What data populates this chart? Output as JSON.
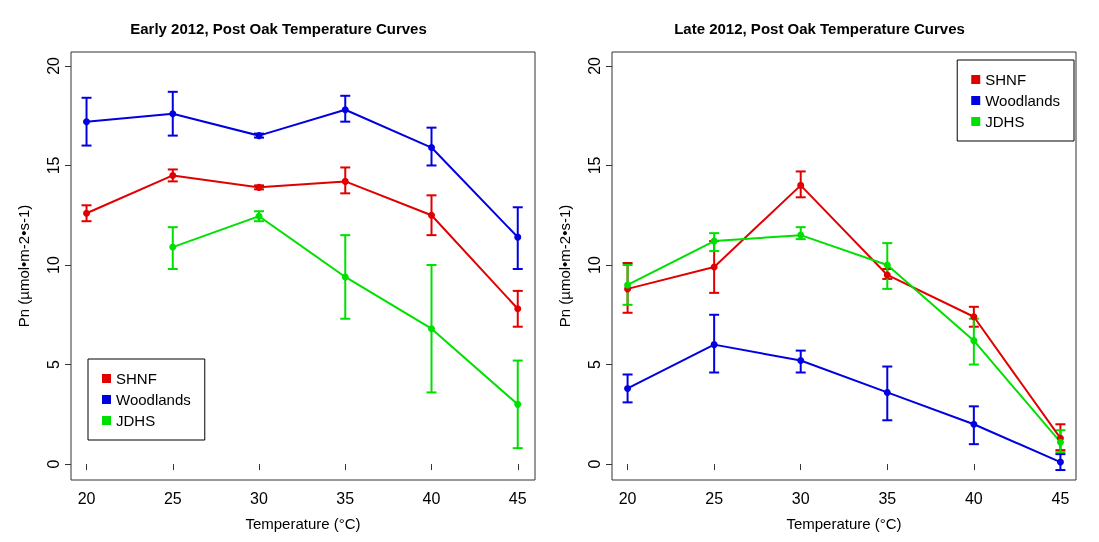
{
  "chart_data": [
    {
      "type": "line",
      "title": "Early 2012, Post Oak Temperature Curves",
      "xlabel": "Temperature (°C)",
      "ylabel": "Pn (µmol•m-2•s-1)",
      "x": [
        20,
        25,
        30,
        35,
        40,
        45
      ],
      "xlim": [
        19.1,
        46
      ],
      "ylim": [
        -0.8,
        20.7
      ],
      "xticks": [
        20,
        25,
        30,
        35,
        40,
        45
      ],
      "yticks": [
        0,
        5,
        10,
        15,
        20
      ],
      "legend": "bottom left",
      "marker": "circle",
      "series": [
        {
          "name": "SHNF",
          "color": "#e00000",
          "values": [
            12.6,
            14.5,
            13.9,
            14.2,
            12.5,
            7.8
          ],
          "errors": [
            [
              12.2,
              13.0
            ],
            [
              14.2,
              14.8
            ],
            [
              13.8,
              14.0
            ],
            [
              13.6,
              14.9
            ],
            [
              11.5,
              13.5
            ],
            [
              6.9,
              8.7
            ]
          ]
        },
        {
          "name": "Woodlands",
          "color": "#0000e0",
          "values": [
            17.2,
            17.6,
            16.5,
            17.8,
            15.9,
            11.4
          ],
          "errors": [
            [
              16.0,
              18.4
            ],
            [
              16.5,
              18.7
            ],
            [
              16.4,
              16.6
            ],
            [
              17.2,
              18.5
            ],
            [
              15.0,
              16.9
            ],
            [
              9.8,
              12.9
            ]
          ]
        },
        {
          "name": "JDHS",
          "color": "#00e000",
          "values": [
            null,
            10.9,
            12.45,
            9.4,
            6.8,
            3.0
          ],
          "errors": [
            null,
            [
              9.8,
              11.9
            ],
            [
              12.2,
              12.7
            ],
            [
              7.3,
              11.5
            ],
            [
              3.6,
              10.0
            ],
            [
              0.8,
              5.2
            ]
          ]
        }
      ]
    },
    {
      "type": "line",
      "title": "Late 2012, Post Oak Temperature Curves",
      "xlabel": "Temperature (°C)",
      "ylabel": "Pn (µmol•m-2•s-1)",
      "x": [
        20,
        25,
        30,
        35,
        40,
        45
      ],
      "xlim": [
        19.1,
        45.9
      ],
      "ylim": [
        -0.8,
        20.7
      ],
      "xticks": [
        20,
        25,
        30,
        35,
        40,
        45
      ],
      "yticks": [
        0,
        5,
        10,
        15,
        20
      ],
      "legend": "top right",
      "marker": "circle",
      "series": [
        {
          "name": "SHNF",
          "color": "#e00000",
          "values": [
            8.8,
            9.9,
            14.0,
            9.5,
            7.4,
            1.3
          ],
          "errors": [
            [
              7.6,
              10.1
            ],
            [
              8.6,
              11.2
            ],
            [
              13.4,
              14.7
            ],
            [
              9.3,
              9.8
            ],
            [
              6.9,
              7.9
            ],
            [
              0.7,
              2.0
            ]
          ]
        },
        {
          "name": "Woodlands",
          "color": "#0000e0",
          "values": [
            3.8,
            6.0,
            5.2,
            3.6,
            2.0,
            0.1
          ],
          "errors": [
            [
              3.1,
              4.5
            ],
            [
              4.6,
              7.5
            ],
            [
              4.6,
              5.7
            ],
            [
              2.2,
              4.9
            ],
            [
              1.0,
              2.9
            ],
            [
              -0.3,
              0.5
            ]
          ]
        },
        {
          "name": "JDHS",
          "color": "#00e000",
          "values": [
            9.0,
            11.2,
            11.5,
            10.0,
            6.2,
            1.1
          ],
          "errors": [
            [
              8.0,
              10.0
            ],
            [
              10.7,
              11.6
            ],
            [
              11.3,
              11.9
            ],
            [
              8.8,
              11.1
            ],
            [
              5.0,
              7.3
            ],
            [
              0.6,
              1.7
            ]
          ]
        }
      ]
    }
  ]
}
